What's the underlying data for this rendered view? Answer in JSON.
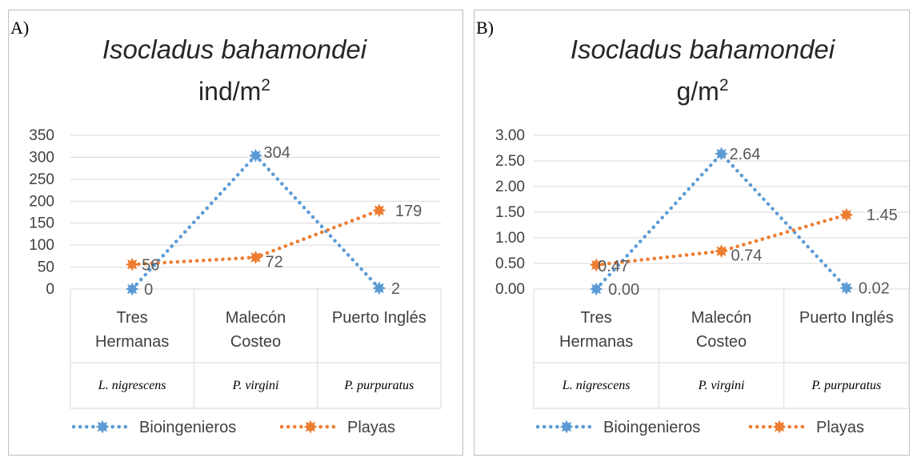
{
  "panels": [
    {
      "panel_label": "A)",
      "title": "Isocladus bahamondei",
      "unit_base": "ind/m",
      "unit_sup": "2",
      "chart_data": {
        "type": "line",
        "categories": [
          "Tres Hermanas",
          "Malecón Costeo",
          "Puerto Inglés"
        ],
        "category_lines": [
          [
            "Tres",
            "Hermanas"
          ],
          [
            "Malecón",
            "Costeo"
          ],
          [
            "Puerto Inglés"
          ]
        ],
        "subcategories": [
          "L. nigrescens",
          "P. virgini",
          "P. purpuratus"
        ],
        "series": [
          {
            "name": "Bioingenieros",
            "values": [
              0,
              304,
              2
            ],
            "labels": [
              "0",
              "304",
              "2"
            ],
            "color": "#5b9bd5"
          },
          {
            "name": "Playas",
            "values": [
              56,
              72,
              179
            ],
            "labels": [
              "56",
              "72",
              "179"
            ],
            "color": "#ed7d31"
          }
        ],
        "ylim": [
          0,
          350
        ],
        "yticks": [
          "0",
          "50",
          "100",
          "150",
          "200",
          "250",
          "300",
          "350"
        ],
        "grid": true,
        "legend": "bottom"
      }
    },
    {
      "panel_label": "B)",
      "title": "Isocladus bahamondei",
      "unit_base": "g/m",
      "unit_sup": "2",
      "chart_data": {
        "type": "line",
        "categories": [
          "Tres Hermanas",
          "Malecón Costeo",
          "Puerto Inglés"
        ],
        "category_lines": [
          [
            "Tres",
            "Hermanas"
          ],
          [
            "Malecón",
            "Costeo"
          ],
          [
            "Puerto Inglés"
          ]
        ],
        "subcategories": [
          "L. nigrescens",
          "P. virgini",
          "P. purpuratus"
        ],
        "series": [
          {
            "name": "Bioingenieros",
            "values": [
              0.0,
              2.64,
              0.02
            ],
            "labels": [
              "0.00",
              "2.64",
              "0.02"
            ],
            "color": "#5b9bd5"
          },
          {
            "name": "Playas",
            "values": [
              0.47,
              0.74,
              1.45
            ],
            "labels": [
              "0.47",
              "0.74",
              "1.45"
            ],
            "color": "#ed7d31"
          }
        ],
        "ylim": [
          0,
          3
        ],
        "yticks": [
          "0.00",
          "0.50",
          "1.00",
          "1.50",
          "2.00",
          "2.50",
          "3.00"
        ],
        "grid": true,
        "legend": "bottom"
      }
    }
  ]
}
